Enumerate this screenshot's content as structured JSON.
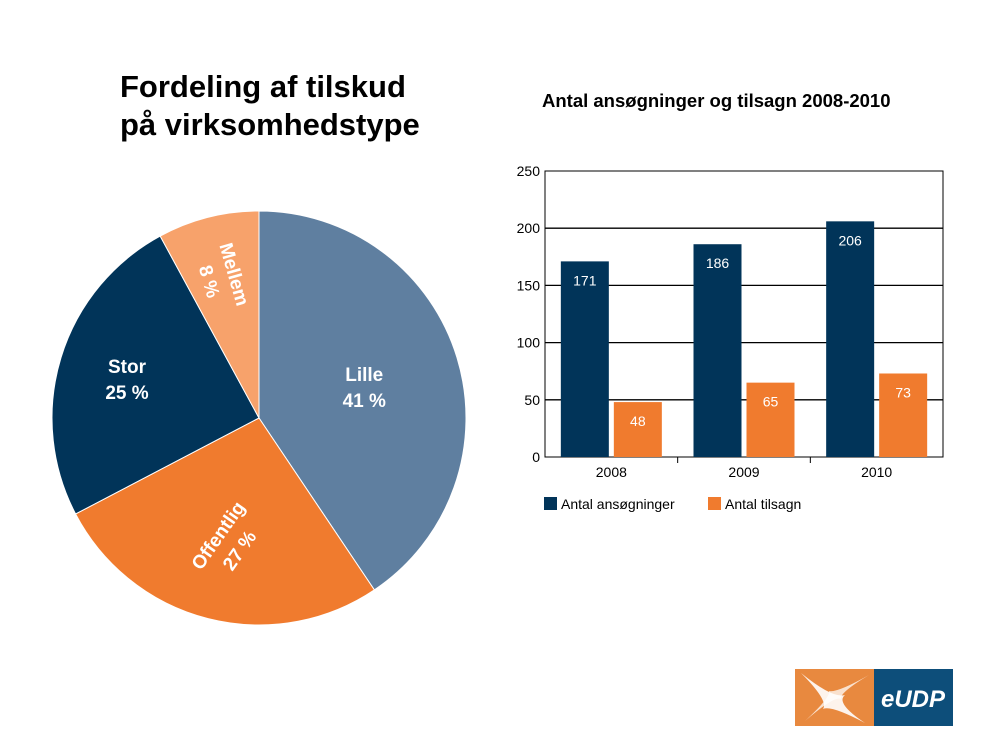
{
  "pie_title_line1": "Fordeling af tilskud",
  "pie_title_line2": "på virksomhedstype",
  "bar_title": "Antal ansøgninger og tilsagn 2008-2010",
  "logo_text": "eUDP",
  "colors": {
    "lille": "#5f7fa0",
    "offentlig": "#f07b2e",
    "stor": "#013459",
    "mellem": "#f7a26b",
    "applications": "#013459",
    "grants": "#f07b2e"
  },
  "chart_data": [
    {
      "type": "pie",
      "title": "Fordeling af tilskud på virksomhedstype",
      "slices": [
        {
          "label": "Lille",
          "value": 41,
          "value_text": "41 %",
          "color": "#5f7fa0"
        },
        {
          "label": "Offentlig",
          "value": 27,
          "value_text": "27 %",
          "color": "#f07b2e"
        },
        {
          "label": "Stor",
          "value": 25,
          "value_text": "25 %",
          "color": "#013459"
        },
        {
          "label": "Mellem",
          "value": 8,
          "value_text": "8 %",
          "color": "#f7a26b"
        }
      ]
    },
    {
      "type": "bar",
      "title": "Antal ansøgninger og tilsagn 2008-2010",
      "categories": [
        "2008",
        "2009",
        "2010"
      ],
      "series": [
        {
          "name": "Antal ansøgninger",
          "values": [
            171,
            186,
            206
          ],
          "color": "#013459"
        },
        {
          "name": "Antal tilsagn",
          "values": [
            48,
            65,
            73
          ],
          "color": "#f07b2e"
        }
      ],
      "ylim": [
        0,
        250
      ],
      "yticks": [
        0,
        50,
        100,
        150,
        200,
        250
      ],
      "grid": true,
      "legend": "bottom"
    }
  ]
}
